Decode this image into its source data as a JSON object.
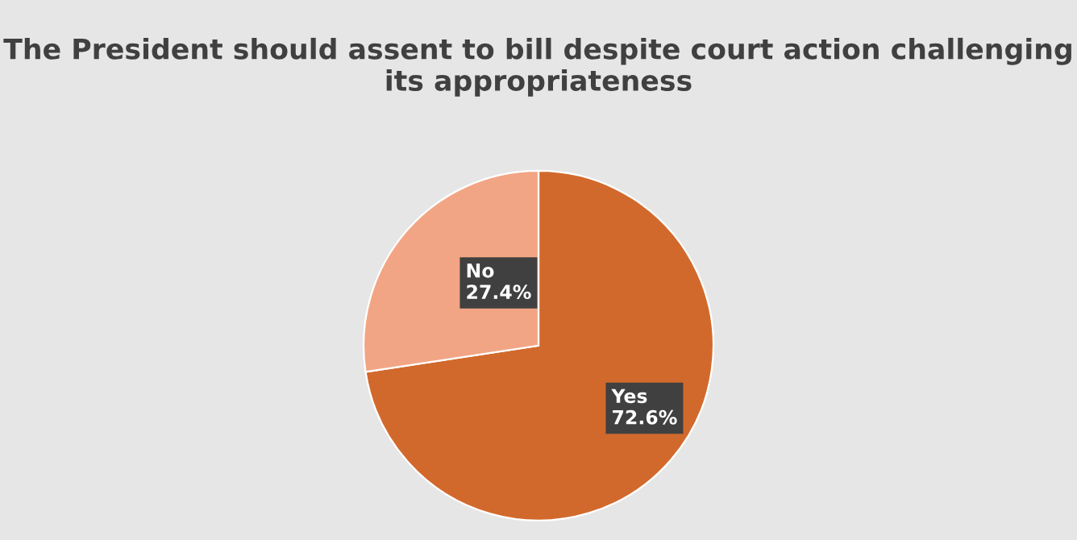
{
  "chart_data": {
    "type": "pie",
    "title": "The President should assent to bill despite court action challenging its appropriateness",
    "categories": [
      "Yes",
      "No"
    ],
    "values": [
      72.6,
      27.4
    ],
    "colors": [
      "#d2692c",
      "#f2a584"
    ],
    "value_labels": [
      "72.6%",
      "27.4%"
    ],
    "legend": false
  }
}
